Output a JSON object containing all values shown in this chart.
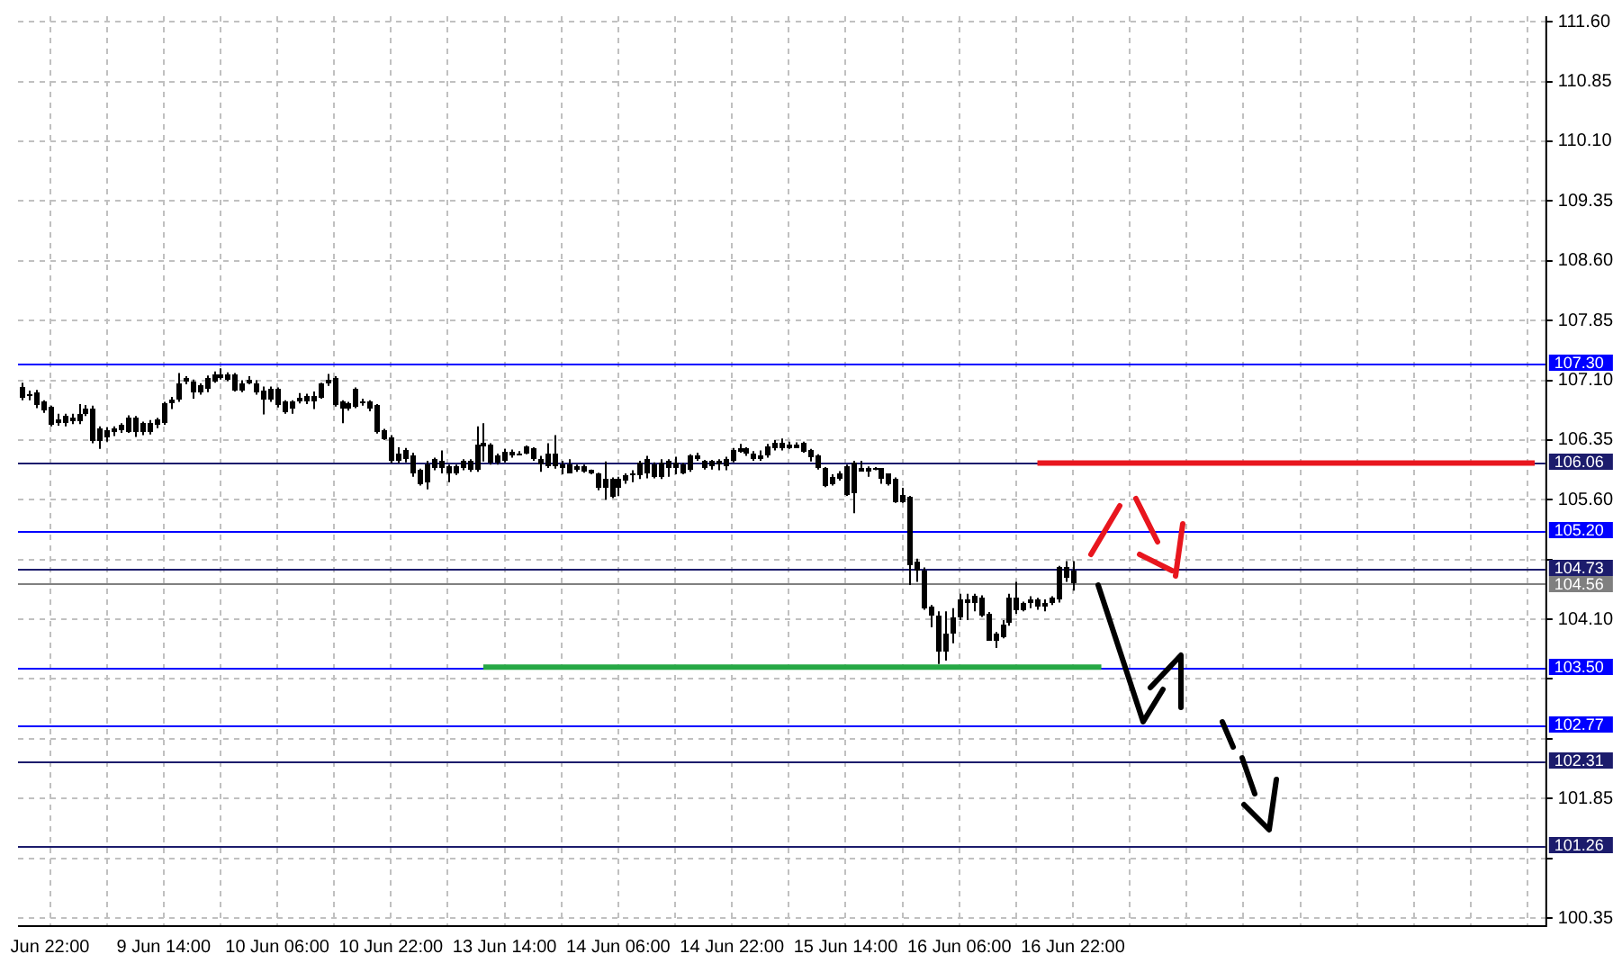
{
  "chart_data": {
    "type": "candlestick",
    "grid": true,
    "categories": [
      null,
      null,
      null,
      null,
      "Jun 22:00",
      null,
      null,
      null,
      null,
      null,
      null,
      null,
      null,
      null,
      null,
      null,
      null,
      null,
      null,
      null,
      "9 Jun 14:00",
      null,
      null,
      null,
      null,
      null,
      null,
      null,
      null,
      null,
      null,
      null,
      null,
      null,
      null,
      null,
      "10 Jun 06:00",
      null,
      null,
      null,
      null,
      null,
      null,
      null,
      null,
      null,
      null,
      null,
      null,
      null,
      null,
      null,
      "10 Jun 22:00",
      null,
      null,
      null,
      null,
      null,
      null,
      null,
      null,
      null,
      null,
      null,
      null,
      null,
      null,
      null,
      "13 Jun 14:00",
      null,
      null,
      null,
      null,
      null,
      null,
      null,
      null,
      null,
      null,
      null,
      null,
      null,
      null,
      null,
      "14 Jun 06:00",
      null,
      null,
      null,
      null,
      null,
      null,
      null,
      null,
      null,
      null,
      null,
      null,
      null,
      null,
      null,
      "14 Jun 22:00",
      null,
      null,
      null,
      null,
      null,
      null,
      null,
      null,
      null,
      null,
      null,
      null,
      null,
      null,
      null,
      "15 Jun 14:00",
      null,
      null,
      null,
      null,
      null,
      null,
      null,
      null,
      null,
      null,
      null,
      null,
      null,
      null,
      null,
      "16 Jun 06:00",
      null,
      null,
      null,
      null,
      null,
      null,
      null,
      null,
      null,
      null,
      null,
      null,
      null,
      null,
      null,
      "16 Jun 22:00",
      null,
      null,
      null,
      null,
      null,
      null,
      null,
      null,
      null,
      null,
      null,
      null,
      null,
      null,
      null,
      null,
      null,
      null,
      null,
      null,
      null,
      null,
      null,
      null,
      null,
      null,
      null,
      null,
      null,
      null,
      null,
      null,
      null,
      null,
      null,
      null,
      null,
      null,
      null,
      null,
      null,
      null,
      null,
      null,
      null,
      null,
      null,
      null,
      null,
      null,
      null,
      null,
      null,
      null,
      null,
      null,
      null,
      null,
      null,
      null,
      null,
      null,
      null,
      null,
      null,
      null
    ],
    "ylim": [
      100.26,
      111.67
    ],
    "yticks": [
      {
        "value": 100.35,
        "label": "100.35"
      },
      {
        "value": 101.1,
        "label": null
      },
      {
        "value": 101.85,
        "label": "101.85"
      },
      {
        "value": 102.6,
        "label": null
      },
      {
        "value": 103.35,
        "label": null
      },
      {
        "value": 104.1,
        "label": "104.10"
      },
      {
        "value": 104.85,
        "label": null
      },
      {
        "value": 105.6,
        "label": "105.60"
      },
      {
        "value": 106.35,
        "label": "106.35"
      },
      {
        "value": 107.1,
        "label": "107.10"
      },
      {
        "value": 107.85,
        "label": "107.85"
      },
      {
        "value": 108.6,
        "label": "108.60"
      },
      {
        "value": 109.35,
        "label": "109.35"
      },
      {
        "value": 110.1,
        "label": "110.10"
      },
      {
        "value": 110.85,
        "label": "110.85"
      },
      {
        "value": 111.6,
        "label": "111.60"
      }
    ],
    "ref_lines": [
      {
        "axis": "y",
        "value": 107.3,
        "label": "107.30",
        "color": "#0000ff"
      },
      {
        "axis": "y",
        "value": 106.06,
        "label": "106.06",
        "color": "#1c1c6c"
      },
      {
        "axis": "y",
        "value": 105.2,
        "label": "105.20",
        "color": "#0000ff"
      },
      {
        "axis": "y",
        "value": 104.73,
        "label": "104.73",
        "color": "#1c1c6c"
      },
      {
        "axis": "y",
        "value": 104.56,
        "label": "104.56",
        "color": "#808080"
      },
      {
        "axis": "y",
        "value": 103.5,
        "label": "103.50",
        "color": "#0000ff"
      },
      {
        "axis": "y",
        "value": 102.77,
        "label": "102.77",
        "color": "#0000ff"
      },
      {
        "axis": "y",
        "value": 102.31,
        "label": "102.31",
        "color": "#1c1c6c"
      },
      {
        "axis": "y",
        "value": 101.26,
        "label": "101.26",
        "color": "#1c1c6c"
      }
    ],
    "series": [
      {
        "color": "#000000",
        "ohlc": [
          [
            107.02,
            107.07,
            106.85,
            106.89
          ],
          [
            106.93,
            106.97,
            106.85,
            106.92
          ],
          [
            106.95,
            106.98,
            106.75,
            106.78
          ],
          [
            106.83,
            106.85,
            106.69,
            106.72
          ],
          [
            106.76,
            106.78,
            106.52,
            106.54
          ],
          [
            106.6,
            106.68,
            106.53,
            106.61
          ],
          [
            106.56,
            106.68,
            106.52,
            106.65
          ],
          [
            106.64,
            106.68,
            106.55,
            106.58
          ],
          [
            106.59,
            106.8,
            106.55,
            106.67
          ],
          [
            106.68,
            106.79,
            106.65,
            106.75
          ],
          [
            106.74,
            106.78,
            106.31,
            106.34
          ],
          [
            106.5,
            106.52,
            106.24,
            106.34
          ],
          [
            106.39,
            106.51,
            106.33,
            106.48
          ],
          [
            106.48,
            106.52,
            106.4,
            106.49
          ],
          [
            106.48,
            106.56,
            106.44,
            106.53
          ],
          [
            106.46,
            106.66,
            106.44,
            106.63
          ],
          [
            106.63,
            106.65,
            106.39,
            106.45
          ],
          [
            106.56,
            106.58,
            106.41,
            106.45
          ],
          [
            106.45,
            106.6,
            106.42,
            106.56
          ],
          [
            106.53,
            106.63,
            106.5,
            106.6
          ],
          [
            106.56,
            106.83,
            106.54,
            106.81
          ],
          [
            106.81,
            106.89,
            106.74,
            106.86
          ],
          [
            106.85,
            107.19,
            106.83,
            107.07
          ],
          [
            107.11,
            107.15,
            107.05,
            107.12
          ],
          [
            107.09,
            107.11,
            106.87,
            106.95
          ],
          [
            106.95,
            107.06,
            106.92,
            107.03
          ],
          [
            106.99,
            107.16,
            106.95,
            107.13
          ],
          [
            107.09,
            107.21,
            107.07,
            107.17
          ],
          [
            107.17,
            107.25,
            107.11,
            107.12
          ],
          [
            107.11,
            107.2,
            107.09,
            107.17
          ],
          [
            107.17,
            107.19,
            106.96,
            106.98
          ],
          [
            106.98,
            107.1,
            106.95,
            107.07
          ],
          [
            107.1,
            107.15,
            107.05,
            107.11
          ],
          [
            107.07,
            107.1,
            106.92,
            106.94
          ],
          [
            106.98,
            107.02,
            106.67,
            106.85
          ],
          [
            106.85,
            107.02,
            106.83,
            106.99
          ],
          [
            106.99,
            107.01,
            106.76,
            106.8
          ],
          [
            106.83,
            106.85,
            106.68,
            106.7
          ],
          [
            106.74,
            106.85,
            106.68,
            106.83
          ],
          [
            106.88,
            106.94,
            106.81,
            106.89
          ],
          [
            106.9,
            106.93,
            106.8,
            106.83
          ],
          [
            106.83,
            106.96,
            106.74,
            106.9
          ],
          [
            106.89,
            107.07,
            106.87,
            107.05
          ],
          [
            107.1,
            107.18,
            107.03,
            107.11
          ],
          [
            107.12,
            107.15,
            106.77,
            106.78
          ],
          [
            106.83,
            106.85,
            106.56,
            106.75
          ],
          [
            106.81,
            106.83,
            106.72,
            106.74
          ],
          [
            106.77,
            107.01,
            106.75,
            106.99
          ],
          [
            106.83,
            106.87,
            106.78,
            106.82
          ],
          [
            106.83,
            106.85,
            106.71,
            106.74
          ],
          [
            106.78,
            106.8,
            106.43,
            106.45
          ],
          [
            106.48,
            106.49,
            106.35,
            106.37
          ],
          [
            106.39,
            106.41,
            106.06,
            106.08
          ],
          [
            106.08,
            106.26,
            106.06,
            106.19
          ],
          [
            106.22,
            106.25,
            106.07,
            106.11
          ],
          [
            106.15,
            106.19,
            105.89,
            105.92
          ],
          [
            105.97,
            105.99,
            105.78,
            105.8
          ],
          [
            105.82,
            106.09,
            105.73,
            106.04
          ],
          [
            106.01,
            106.13,
            105.97,
            106.11
          ],
          [
            106.09,
            106.22,
            105.93,
            105.99
          ],
          [
            106.02,
            106.04,
            105.82,
            105.92
          ],
          [
            105.93,
            106.04,
            105.91,
            106.02
          ],
          [
            106.0,
            106.11,
            105.97,
            106.09
          ],
          [
            106.09,
            106.11,
            105.95,
            105.97
          ],
          [
            105.97,
            106.52,
            105.95,
            106.3
          ],
          [
            106.31,
            106.56,
            106.08,
            106.26
          ],
          [
            106.29,
            106.31,
            106.04,
            106.06
          ],
          [
            106.15,
            106.18,
            106.04,
            106.06
          ],
          [
            106.09,
            106.24,
            106.07,
            106.21
          ],
          [
            106.21,
            106.23,
            106.13,
            106.15
          ],
          [
            106.19,
            106.21,
            106.16,
            106.18
          ],
          [
            106.19,
            106.28,
            106.17,
            106.26
          ],
          [
            106.24,
            106.26,
            106.09,
            106.11
          ],
          [
            106.11,
            106.15,
            105.95,
            106.04
          ],
          [
            106.02,
            106.31,
            106.0,
            106.19
          ],
          [
            106.19,
            106.41,
            105.99,
            106.02
          ],
          [
            106.04,
            106.09,
            105.92,
            106.04
          ],
          [
            106.04,
            106.11,
            105.93,
            105.94
          ],
          [
            105.97,
            106.04,
            105.95,
            106.02
          ],
          [
            106.02,
            106.04,
            105.94,
            105.96
          ],
          [
            105.97,
            105.98,
            105.92,
            105.93
          ],
          [
            105.93,
            105.94,
            105.72,
            105.75
          ],
          [
            105.75,
            106.08,
            105.6,
            105.86
          ],
          [
            105.86,
            105.88,
            105.62,
            105.64
          ],
          [
            105.75,
            105.89,
            105.65,
            105.87
          ],
          [
            105.84,
            105.93,
            105.8,
            105.91
          ],
          [
            105.92,
            105.97,
            105.82,
            105.91
          ],
          [
            105.91,
            106.09,
            105.86,
            106.06
          ],
          [
            106.11,
            106.15,
            105.87,
            105.92
          ],
          [
            106.04,
            106.07,
            105.87,
            105.89
          ],
          [
            105.89,
            106.11,
            105.86,
            106.06
          ],
          [
            106.08,
            106.11,
            105.89,
            106.0
          ],
          [
            106.0,
            106.14,
            105.92,
            106.06
          ],
          [
            106.04,
            106.06,
            105.92,
            105.94
          ],
          [
            105.97,
            106.17,
            105.95,
            106.15
          ],
          [
            106.15,
            106.19,
            106.09,
            106.15
          ],
          [
            106.08,
            106.1,
            105.98,
            106.0
          ],
          [
            106.02,
            106.1,
            105.98,
            106.08
          ],
          [
            106.09,
            106.11,
            105.97,
            106.04
          ],
          [
            106.02,
            106.14,
            105.97,
            106.11
          ],
          [
            106.09,
            106.25,
            106.07,
            106.22
          ],
          [
            106.24,
            106.3,
            106.19,
            106.24
          ],
          [
            106.24,
            106.26,
            106.15,
            106.17
          ],
          [
            106.19,
            106.21,
            106.09,
            106.11
          ],
          [
            106.15,
            106.22,
            106.09,
            106.15
          ],
          [
            106.15,
            106.3,
            106.13,
            106.26
          ],
          [
            106.24,
            106.35,
            106.22,
            106.31
          ],
          [
            106.25,
            106.37,
            106.22,
            106.31
          ],
          [
            106.3,
            106.33,
            106.24,
            106.3
          ],
          [
            106.3,
            106.32,
            106.28,
            106.3
          ],
          [
            106.31,
            106.33,
            106.19,
            106.21
          ],
          [
            106.22,
            106.24,
            106.08,
            106.14
          ],
          [
            106.15,
            106.17,
            105.98,
            106.0
          ],
          [
            106.0,
            106.01,
            105.76,
            105.78
          ],
          [
            105.8,
            105.92,
            105.78,
            105.89
          ],
          [
            105.86,
            105.96,
            105.84,
            105.94
          ],
          [
            106.02,
            106.04,
            105.65,
            105.67
          ],
          [
            105.69,
            106.09,
            105.43,
            106.06
          ],
          [
            106.0,
            106.09,
            105.97,
            106.0
          ],
          [
            106.0,
            106.02,
            105.89,
            106.0
          ],
          [
            106.0,
            106.01,
            105.97,
            105.99
          ],
          [
            105.99,
            106.0,
            105.8,
            105.86
          ],
          [
            105.92,
            105.93,
            105.78,
            105.8
          ],
          [
            105.87,
            105.88,
            105.56,
            105.58
          ],
          [
            105.58,
            105.75,
            105.56,
            105.67
          ],
          [
            105.64,
            105.65,
            104.53,
            104.79
          ],
          [
            104.83,
            104.86,
            104.57,
            104.72
          ],
          [
            104.72,
            104.75,
            104.22,
            104.24
          ],
          [
            104.25,
            104.28,
            104.0,
            104.15
          ],
          [
            104.15,
            104.2,
            103.54,
            103.69
          ],
          [
            103.69,
            104.2,
            103.58,
            103.91
          ],
          [
            103.91,
            104.24,
            103.8,
            104.13
          ],
          [
            104.13,
            104.42,
            104.09,
            104.35
          ],
          [
            104.35,
            104.42,
            104.09,
            104.3
          ],
          [
            104.3,
            104.42,
            104.2,
            104.4
          ],
          [
            104.38,
            104.4,
            104.13,
            104.15
          ],
          [
            104.17,
            104.19,
            103.83,
            103.84
          ],
          [
            103.93,
            103.94,
            103.74,
            103.84
          ],
          [
            103.88,
            104.09,
            103.86,
            104.03
          ],
          [
            104.06,
            104.42,
            104.02,
            104.37
          ],
          [
            104.37,
            104.57,
            104.17,
            104.22
          ],
          [
            104.22,
            104.32,
            104.2,
            104.3
          ],
          [
            104.35,
            104.39,
            104.24,
            104.35
          ],
          [
            104.25,
            104.37,
            104.22,
            104.35
          ],
          [
            104.3,
            104.35,
            104.2,
            104.3
          ],
          [
            104.3,
            104.39,
            104.28,
            104.37
          ],
          [
            104.35,
            104.77,
            104.31,
            104.75
          ],
          [
            104.75,
            104.83,
            104.57,
            104.61
          ],
          [
            104.72,
            104.83,
            104.46,
            104.56
          ],
          null,
          null,
          null,
          null,
          null,
          null,
          null,
          null,
          null,
          null,
          null,
          null,
          null,
          null,
          null,
          null,
          null,
          null,
          null,
          null,
          null,
          null,
          null,
          null,
          null,
          null,
          null,
          null,
          null,
          null,
          null,
          null,
          null,
          null,
          null,
          null,
          null,
          null,
          null,
          null,
          null,
          null,
          null,
          null,
          null,
          null,
          null,
          null,
          null,
          null,
          null,
          null,
          null,
          null,
          null,
          null,
          null,
          null,
          null,
          null,
          null,
          null,
          null,
          null,
          null,
          null
        ]
      },
      {
        "type": "line",
        "color": "#e8161e",
        "values": [
          null,
          null,
          null,
          null,
          null,
          null,
          null,
          null,
          null,
          null,
          null,
          null,
          null,
          null,
          null,
          null,
          null,
          null,
          null,
          null,
          null,
          null,
          null,
          null,
          null,
          null,
          null,
          null,
          null,
          null,
          null,
          null,
          null,
          null,
          null,
          null,
          null,
          null,
          null,
          null,
          null,
          null,
          null,
          null,
          null,
          null,
          null,
          null,
          null,
          null,
          null,
          null,
          null,
          null,
          null,
          null,
          null,
          null,
          null,
          null,
          null,
          null,
          null,
          null,
          null,
          null,
          null,
          null,
          null,
          null,
          null,
          null,
          null,
          null,
          null,
          null,
          null,
          null,
          null,
          null,
          null,
          null,
          null,
          null,
          null,
          null,
          null,
          null,
          null,
          null,
          null,
          null,
          null,
          null,
          null,
          null,
          null,
          null,
          null,
          null,
          null,
          null,
          null,
          null,
          null,
          null,
          null,
          null,
          null,
          null,
          null,
          null,
          null,
          null,
          null,
          null,
          null,
          null,
          null,
          null,
          null,
          null,
          null,
          null,
          null,
          null,
          null,
          null,
          null,
          null,
          null,
          null,
          null,
          null,
          null,
          null,
          null,
          null,
          null,
          null,
          null,
          null,
          null,
          106.06,
          106.06,
          106.06,
          106.06,
          106.06,
          106.06,
          106.06,
          106.06,
          106.06,
          106.06,
          106.06,
          106.06,
          106.06,
          106.06,
          106.06,
          106.06,
          106.06,
          106.06,
          106.06,
          106.06,
          106.06,
          106.06,
          106.06,
          106.06,
          106.06,
          106.06,
          106.06,
          106.06,
          106.06,
          106.06,
          106.06,
          106.06,
          106.06,
          106.06,
          106.06,
          106.06,
          106.06,
          106.06,
          106.06,
          106.06,
          106.06,
          106.06,
          106.06,
          106.06,
          106.06,
          106.06,
          106.06,
          106.06,
          106.06,
          106.06,
          106.06,
          106.06,
          106.06,
          106.06,
          106.06,
          106.06,
          106.06,
          106.06,
          106.06,
          106.06,
          106.06,
          106.06,
          106.06,
          106.06,
          106.06,
          106.06,
          106.06,
          106.06,
          106.06,
          106.06,
          106.06,
          null
        ]
      },
      {
        "type": "line",
        "color": "#26a845",
        "values": [
          null,
          null,
          null,
          null,
          null,
          null,
          null,
          null,
          null,
          null,
          null,
          null,
          null,
          null,
          null,
          null,
          null,
          null,
          null,
          null,
          null,
          null,
          null,
          null,
          null,
          null,
          null,
          null,
          null,
          null,
          null,
          null,
          null,
          null,
          null,
          null,
          null,
          null,
          null,
          null,
          null,
          null,
          null,
          null,
          null,
          null,
          null,
          null,
          null,
          null,
          null,
          null,
          null,
          null,
          null,
          null,
          null,
          null,
          null,
          null,
          null,
          null,
          null,
          null,
          null,
          103.5,
          103.5,
          103.5,
          103.5,
          103.5,
          103.5,
          103.5,
          103.5,
          103.5,
          103.5,
          103.5,
          103.5,
          103.5,
          103.5,
          103.5,
          103.5,
          103.5,
          103.5,
          103.5,
          103.5,
          103.5,
          103.5,
          103.5,
          103.5,
          103.5,
          103.5,
          103.5,
          103.5,
          103.5,
          103.5,
          103.5,
          103.5,
          103.5,
          103.5,
          103.5,
          103.5,
          103.5,
          103.5,
          103.5,
          103.5,
          103.5,
          103.5,
          103.5,
          103.5,
          103.5,
          103.5,
          103.5,
          103.5,
          103.5,
          103.5,
          103.5,
          103.5,
          103.5,
          103.5,
          103.5,
          103.5,
          103.5,
          103.5,
          103.5,
          103.5,
          103.5,
          103.5,
          103.5,
          103.5,
          103.5,
          103.5,
          103.5,
          103.5,
          103.5,
          103.5,
          103.5,
          103.5,
          103.5,
          103.5,
          103.5,
          103.5,
          103.5,
          103.5,
          103.5,
          103.5,
          103.5,
          103.5,
          103.5,
          103.5,
          103.5,
          103.5,
          103.5,
          103.5,
          null,
          null,
          null,
          null,
          null,
          null,
          null,
          null,
          null,
          null,
          null,
          null,
          null,
          null,
          null,
          null,
          null,
          null,
          null,
          null,
          null,
          null,
          null,
          null,
          null,
          null,
          null,
          null,
          null,
          null,
          null,
          null,
          null,
          null,
          null,
          null,
          null,
          null,
          null,
          null,
          null,
          null,
          null,
          null,
          null,
          null,
          null,
          null,
          null,
          null,
          null,
          null,
          null,
          null,
          null,
          null,
          null,
          null,
          null,
          null,
          null,
          null
        ]
      }
    ]
  }
}
